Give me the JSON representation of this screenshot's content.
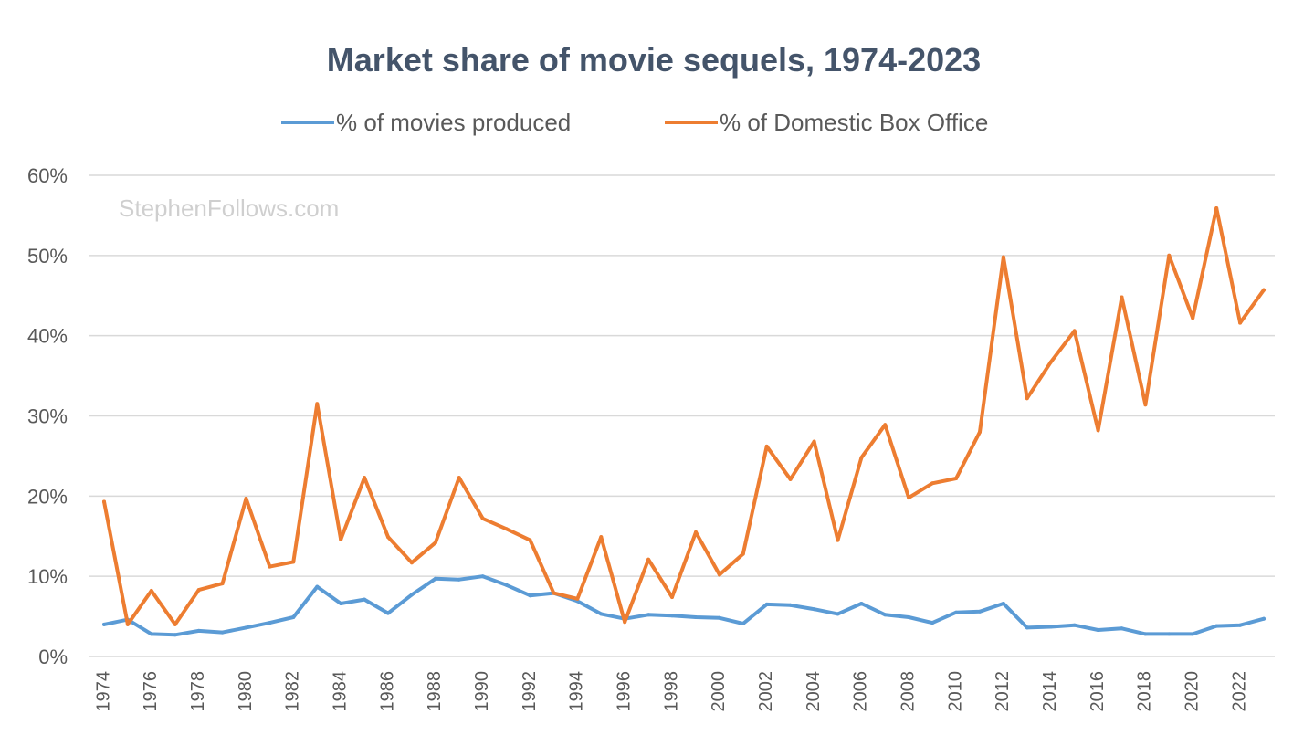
{
  "chart_data": {
    "type": "line",
    "title": "Market share of movie sequels, 1974-2023",
    "watermark": "StephenFollows.com",
    "xlabel": "",
    "ylabel": "",
    "ylim": [
      0,
      60
    ],
    "y_ticks": [
      0,
      10,
      20,
      30,
      40,
      50,
      60
    ],
    "y_tick_labels": [
      "0%",
      "10%",
      "20%",
      "30%",
      "40%",
      "50%",
      "60%"
    ],
    "x_tick_labels": [
      "1974",
      "1976",
      "1978",
      "1980",
      "1982",
      "1984",
      "1986",
      "1988",
      "1990",
      "1992",
      "1994",
      "1996",
      "1998",
      "2000",
      "2002",
      "2004",
      "2006",
      "2008",
      "2010",
      "2012",
      "2014",
      "2016",
      "2018",
      "2020",
      "2022"
    ],
    "grid": true,
    "legend_position": "top",
    "x": [
      1974,
      1975,
      1976,
      1977,
      1978,
      1979,
      1980,
      1981,
      1982,
      1983,
      1984,
      1985,
      1986,
      1987,
      1988,
      1989,
      1990,
      1991,
      1992,
      1993,
      1994,
      1995,
      1996,
      1997,
      1998,
      1999,
      2000,
      2001,
      2002,
      2003,
      2004,
      2005,
      2006,
      2007,
      2008,
      2009,
      2010,
      2011,
      2012,
      2013,
      2014,
      2015,
      2016,
      2017,
      2018,
      2019,
      2020,
      2021,
      2022,
      2023
    ],
    "series": [
      {
        "name": "% of movies produced",
        "color": "#5B9BD5",
        "values": [
          4.0,
          4.6,
          2.8,
          2.7,
          3.2,
          3.0,
          3.6,
          4.2,
          4.9,
          8.7,
          6.6,
          7.1,
          5.4,
          7.7,
          9.7,
          9.6,
          10.0,
          8.9,
          7.6,
          7.9,
          6.9,
          5.3,
          4.7,
          5.2,
          5.1,
          4.9,
          4.8,
          4.1,
          6.5,
          6.4,
          5.9,
          5.3,
          6.6,
          5.2,
          4.9,
          4.2,
          5.5,
          5.6,
          6.6,
          3.6,
          3.7,
          3.9,
          3.3,
          3.5,
          2.8,
          2.8,
          2.8,
          3.8,
          3.9,
          4.7
        ]
      },
      {
        "name": "% of Domestic Box Office",
        "color": "#ED7D31",
        "values": [
          19.3,
          4.0,
          8.2,
          4.0,
          8.3,
          9.1,
          19.7,
          11.2,
          11.8,
          31.5,
          14.6,
          22.3,
          14.9,
          11.7,
          14.2,
          22.3,
          17.2,
          15.9,
          14.5,
          7.9,
          7.2,
          14.9,
          4.3,
          12.1,
          7.4,
          15.5,
          10.2,
          12.8,
          26.2,
          22.1,
          26.8,
          14.5,
          24.8,
          28.9,
          19.8,
          21.6,
          22.2,
          28.0,
          49.8,
          32.2,
          36.7,
          40.6,
          28.2,
          44.8,
          31.4,
          50.0,
          42.2,
          55.9,
          41.6,
          45.7
        ]
      }
    ]
  },
  "colors": {
    "title": "#44546A",
    "text": "#595959",
    "grid": "#D9D9D9",
    "watermark": "#CFCFCF"
  }
}
